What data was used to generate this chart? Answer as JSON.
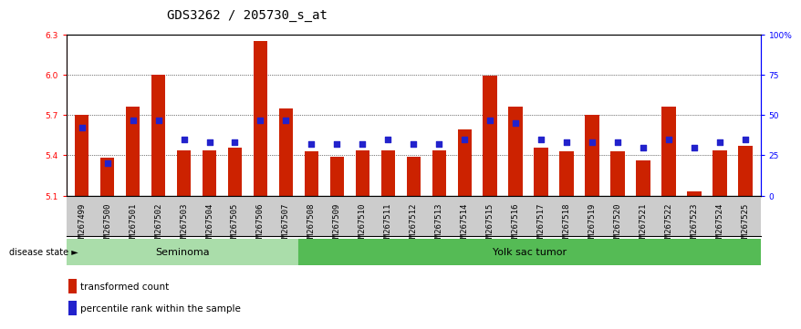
{
  "title": "GDS3262 / 205730_s_at",
  "samples": [
    "GSM267499",
    "GSM267500",
    "GSM267501",
    "GSM267502",
    "GSM267503",
    "GSM267504",
    "GSM267505",
    "GSM267506",
    "GSM267507",
    "GSM267508",
    "GSM267509",
    "GSM267510",
    "GSM267511",
    "GSM267512",
    "GSM267513",
    "GSM267514",
    "GSM267515",
    "GSM267516",
    "GSM267517",
    "GSM267518",
    "GSM267519",
    "GSM267520",
    "GSM267521",
    "GSM267522",
    "GSM267523",
    "GSM267524",
    "GSM267525"
  ],
  "bar_values": [
    5.7,
    5.38,
    5.76,
    6.0,
    5.44,
    5.44,
    5.46,
    6.25,
    5.75,
    5.43,
    5.39,
    5.44,
    5.44,
    5.39,
    5.44,
    5.59,
    5.99,
    5.76,
    5.46,
    5.43,
    5.7,
    5.43,
    5.36,
    5.76,
    5.13,
    5.44,
    5.47
  ],
  "percentile_values": [
    42,
    20,
    47,
    47,
    35,
    33,
    33,
    47,
    47,
    32,
    32,
    32,
    35,
    32,
    32,
    35,
    47,
    45,
    35,
    33,
    33,
    33,
    30,
    35,
    30,
    33,
    35
  ],
  "seminoma_count": 9,
  "yolk_count": 18,
  "ylim_left": [
    5.1,
    6.3
  ],
  "ylim_right": [
    0,
    100
  ],
  "yticks_left": [
    5.1,
    5.4,
    5.7,
    6.0,
    6.3
  ],
  "yticks_right": [
    0,
    25,
    50,
    75,
    100
  ],
  "ytick_labels_right": [
    "0",
    "25",
    "50",
    "75",
    "100%"
  ],
  "bar_color": "#cc2200",
  "dot_color": "#2222cc",
  "seminoma_color": "#aaddaa",
  "yolk_color": "#55bb55",
  "xtick_bg": "#cccccc",
  "plot_bg": "#ffffff",
  "title_fontsize": 10,
  "tick_fontsize": 6.5,
  "label_fontsize": 8
}
